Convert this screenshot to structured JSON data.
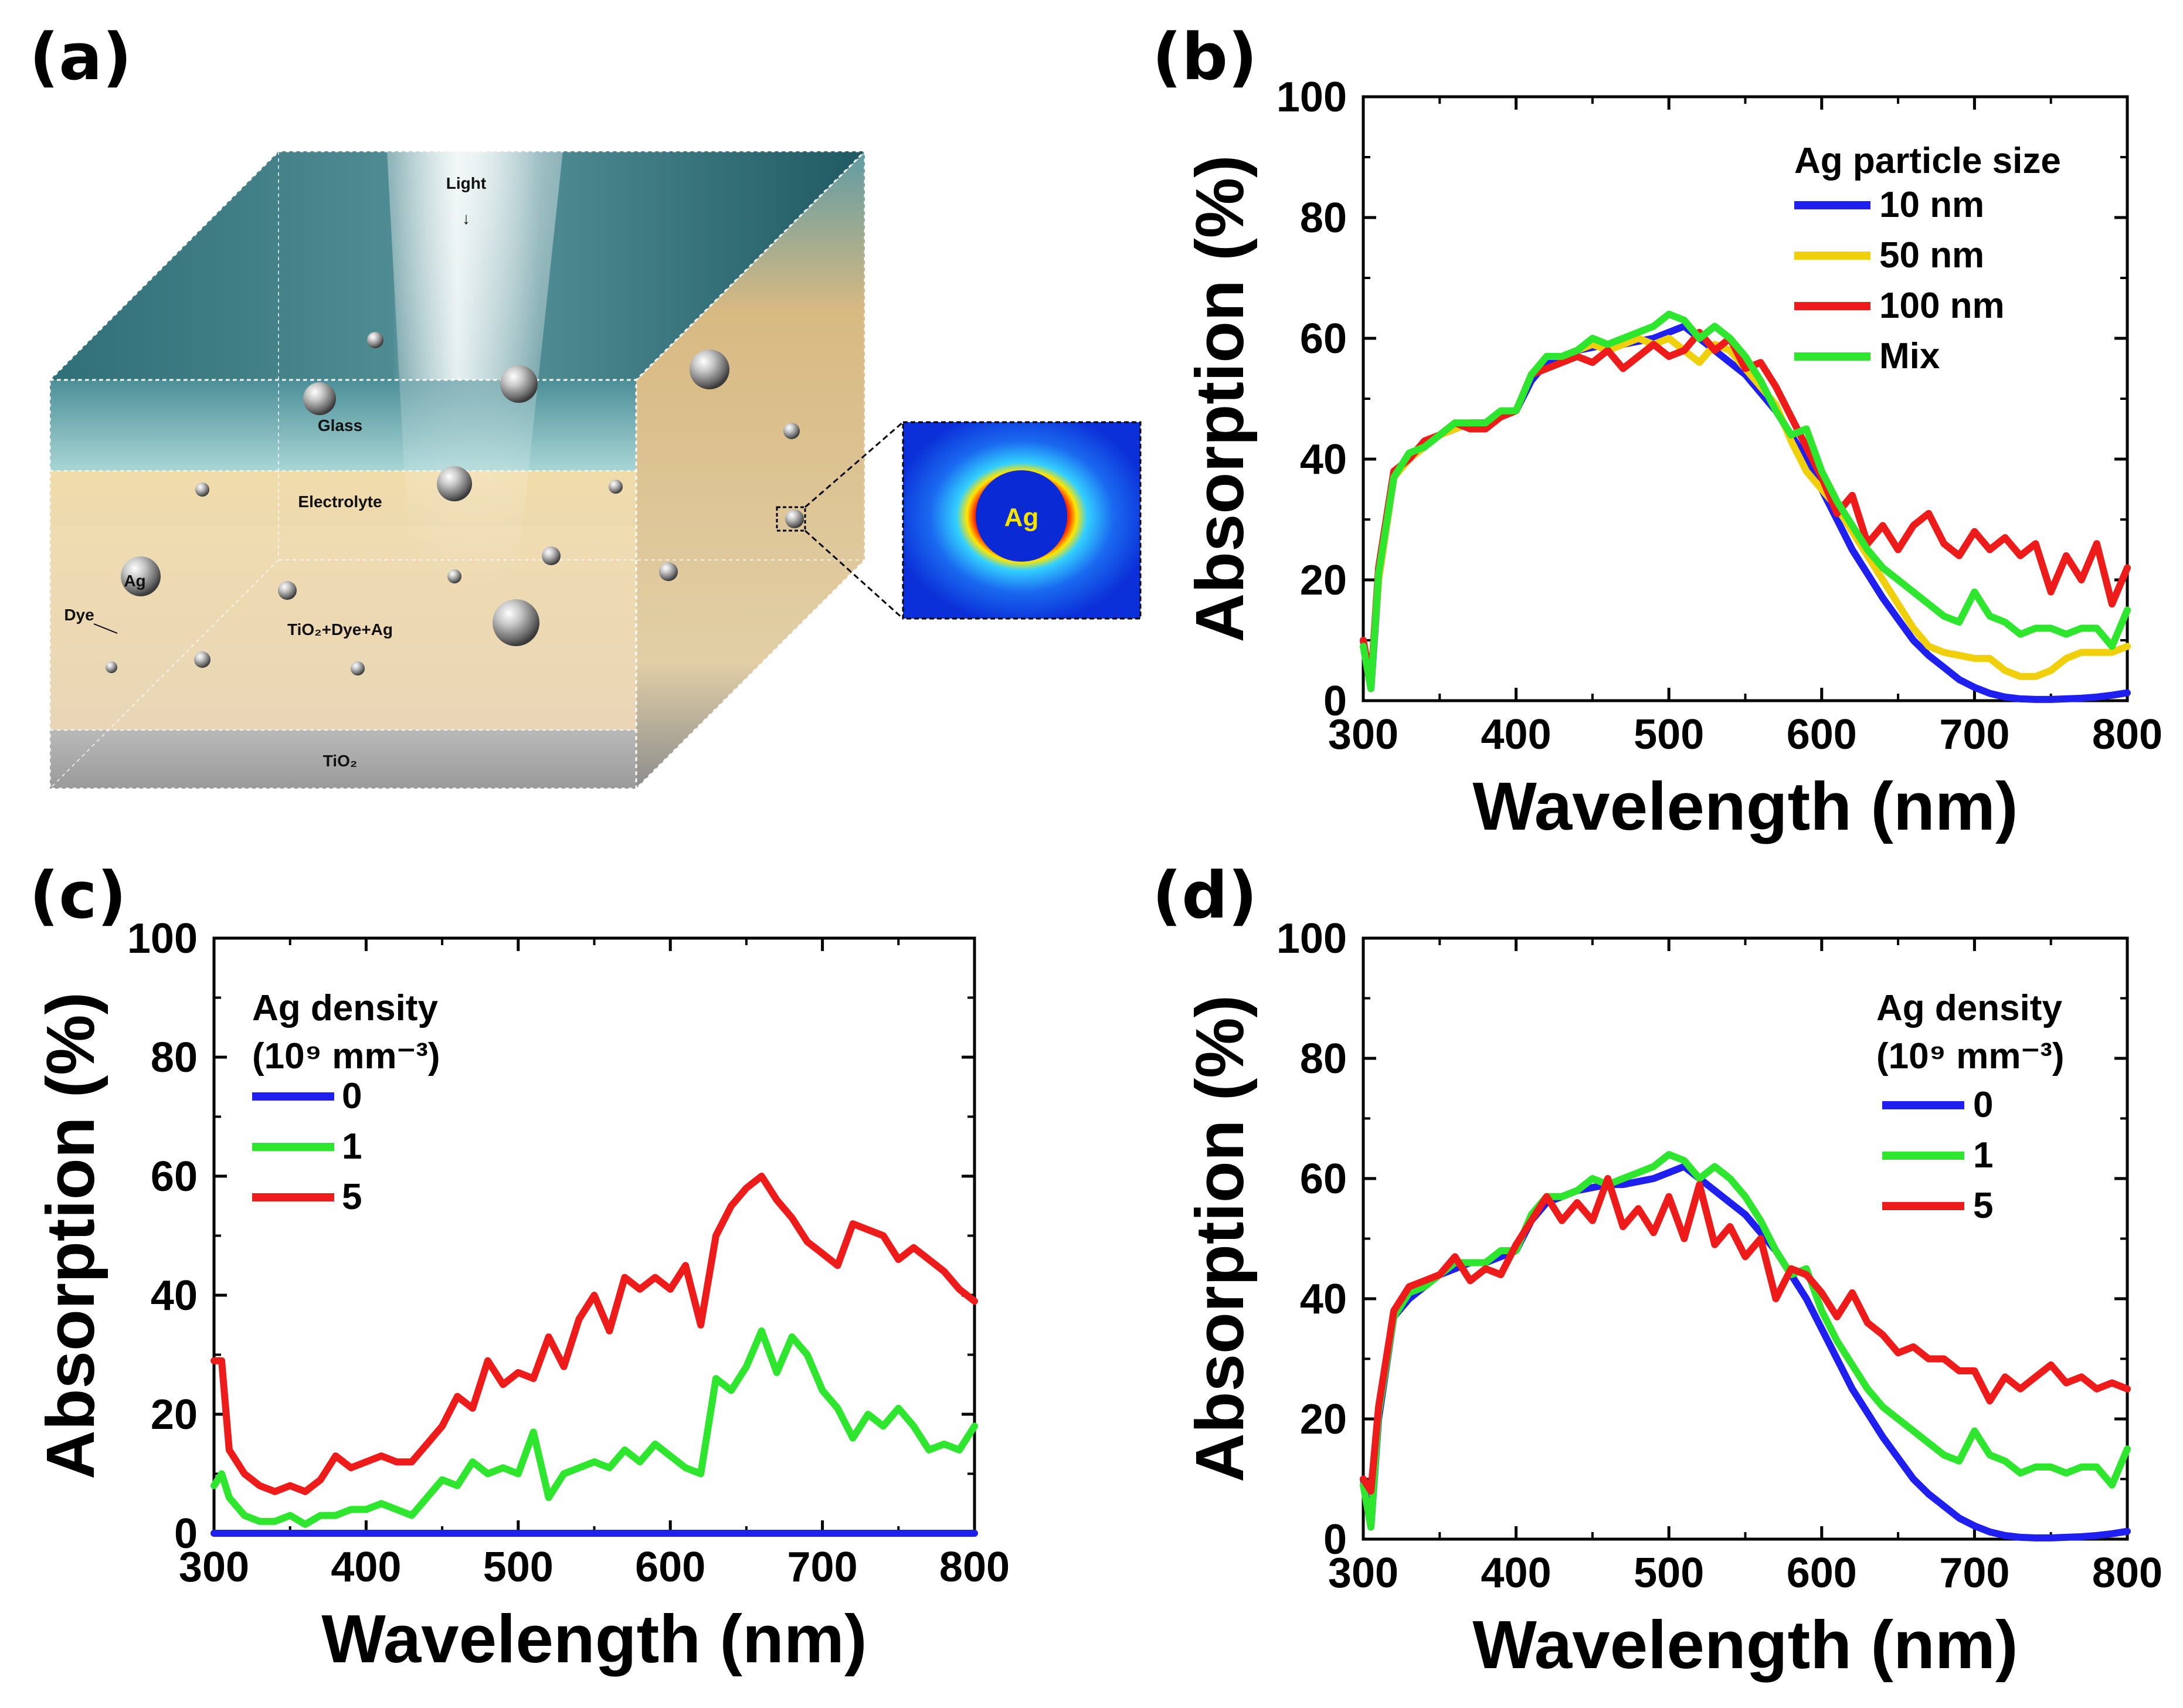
{
  "panels": {
    "a": {
      "label": "(a)",
      "diagram": {
        "light": "Light",
        "glass": "Glass",
        "electrolyte": "Electrolyte",
        "ag": "Ag",
        "dye": "Dye",
        "mixed_layer": "TiO₂+Dye+Ag",
        "tio2": "TiO₂",
        "inset_ag": "Ag"
      }
    },
    "b": {
      "label": "(b)"
    },
    "c": {
      "label": "(c)"
    },
    "d": {
      "label": "(d)"
    }
  },
  "colors": {
    "blue": "#1f1ff0",
    "yellow": "#f0cf0c",
    "red": "#ee1b1b",
    "green": "#2ee62e"
  },
  "chart_data": [
    {
      "id": "b",
      "type": "line",
      "xlabel": "Wavelength (nm)",
      "ylabel": "Absorption (%)",
      "xlim": [
        300,
        800
      ],
      "ylim": [
        0,
        100
      ],
      "xticks": [
        "300",
        "400",
        "500",
        "600",
        "700",
        "800"
      ],
      "yticks": [
        "0",
        "20",
        "40",
        "60",
        "80",
        "100"
      ],
      "legend": {
        "title": "Ag particle size",
        "subtitle": "",
        "position": "top-right"
      },
      "series": [
        {
          "name": "10 nm",
          "color": "#1f1ff0",
          "x": [
            300,
            305,
            310,
            320,
            330,
            340,
            350,
            360,
            370,
            380,
            390,
            400,
            410,
            420,
            430,
            440,
            450,
            460,
            470,
            480,
            490,
            500,
            510,
            520,
            530,
            540,
            550,
            560,
            570,
            580,
            590,
            600,
            610,
            620,
            630,
            640,
            650,
            660,
            670,
            680,
            690,
            700,
            710,
            720,
            730,
            740,
            750,
            760,
            770,
            780,
            790,
            800
          ],
          "y": [
            10,
            2,
            20,
            37,
            40,
            42,
            44,
            45,
            46,
            46,
            47,
            48,
            53,
            56,
            57,
            58,
            58.5,
            59,
            59,
            59.5,
            60,
            61,
            62,
            60,
            58,
            56,
            54,
            51,
            48,
            44,
            40,
            35,
            30,
            25,
            21,
            17,
            13.5,
            10,
            7.5,
            5.5,
            3.5,
            2.2,
            1.2,
            0.6,
            0.3,
            0.2,
            0.2,
            0.3,
            0.4,
            0.6,
            0.9,
            1.3
          ]
        },
        {
          "name": "50 nm",
          "color": "#f0cf0c",
          "x": [
            300,
            305,
            310,
            320,
            330,
            340,
            350,
            360,
            370,
            380,
            390,
            400,
            410,
            420,
            430,
            440,
            450,
            460,
            470,
            480,
            490,
            500,
            510,
            520,
            530,
            540,
            550,
            560,
            570,
            580,
            590,
            600,
            610,
            620,
            630,
            640,
            650,
            660,
            670,
            680,
            690,
            700,
            710,
            720,
            730,
            740,
            750,
            760,
            770,
            780,
            790,
            800
          ],
          "y": [
            9,
            3,
            20,
            37,
            40,
            42,
            44,
            45,
            46,
            45,
            47,
            48,
            54,
            57,
            57,
            58,
            59,
            58,
            59,
            60,
            59,
            60,
            58,
            56,
            59,
            58,
            55,
            52,
            49,
            43,
            38,
            35,
            32,
            28,
            24,
            20,
            16,
            12,
            9,
            8,
            7.5,
            7,
            7,
            5,
            4,
            4,
            5,
            7,
            8,
            8,
            8,
            9
          ]
        },
        {
          "name": "100 nm",
          "color": "#ee1b1b",
          "x": [
            300,
            305,
            310,
            320,
            330,
            340,
            350,
            360,
            370,
            380,
            390,
            400,
            410,
            420,
            430,
            440,
            450,
            460,
            470,
            480,
            490,
            500,
            510,
            520,
            530,
            540,
            550,
            560,
            570,
            580,
            590,
            600,
            610,
            620,
            630,
            640,
            650,
            660,
            670,
            680,
            690,
            700,
            710,
            720,
            730,
            740,
            750,
            760,
            770,
            780,
            790,
            800
          ],
          "y": [
            10,
            3,
            22,
            38,
            40,
            43,
            44,
            46,
            45,
            45,
            47,
            48,
            54,
            55,
            56,
            57,
            56,
            58,
            55,
            57,
            59,
            57,
            58,
            61,
            58,
            60,
            55,
            56,
            52,
            47,
            42,
            37,
            31,
            34,
            26,
            29,
            25,
            29,
            31,
            26,
            24,
            28,
            25,
            27,
            24,
            26,
            18,
            24,
            20,
            26,
            16,
            22
          ]
        },
        {
          "name": "Mix",
          "color": "#2ee62e",
          "x": [
            300,
            305,
            310,
            320,
            330,
            340,
            350,
            360,
            370,
            380,
            390,
            400,
            410,
            420,
            430,
            440,
            450,
            460,
            470,
            480,
            490,
            500,
            510,
            520,
            530,
            540,
            550,
            560,
            570,
            580,
            590,
            600,
            610,
            620,
            630,
            640,
            650,
            660,
            670,
            680,
            690,
            700,
            710,
            720,
            730,
            740,
            750,
            760,
            770,
            780,
            790,
            800
          ],
          "y": [
            9,
            2,
            21,
            37,
            41,
            42,
            44,
            46,
            46,
            46,
            48,
            48,
            54,
            57,
            57,
            58,
            60,
            59,
            60,
            61,
            62,
            64,
            63,
            60,
            62,
            60,
            57,
            53,
            48,
            44,
            45,
            38,
            33,
            29,
            25,
            22,
            20,
            18,
            16,
            14,
            13,
            18,
            14,
            13,
            11,
            12,
            12,
            11,
            12,
            12,
            9,
            15
          ]
        }
      ]
    },
    {
      "id": "c",
      "type": "line",
      "xlabel": "Wavelength (nm)",
      "ylabel": "Absorption (%)",
      "xlim": [
        300,
        800
      ],
      "ylim": [
        0,
        100
      ],
      "xticks": [
        "300",
        "400",
        "500",
        "600",
        "700",
        "800"
      ],
      "yticks": [
        "0",
        "20",
        "40",
        "60",
        "80",
        "100"
      ],
      "legend": {
        "title": "Ag density",
        "subtitle": "(10⁹ mm⁻³)",
        "position": "top-left"
      },
      "series": [
        {
          "name": "0",
          "color": "#1f1ff0",
          "x": [
            300,
            800
          ],
          "y": [
            0,
            0
          ]
        },
        {
          "name": "1",
          "color": "#2ee62e",
          "x": [
            300,
            305,
            310,
            320,
            330,
            340,
            350,
            360,
            370,
            380,
            390,
            400,
            410,
            420,
            430,
            440,
            450,
            460,
            470,
            480,
            490,
            500,
            510,
            520,
            530,
            540,
            550,
            560,
            570,
            580,
            590,
            600,
            610,
            620,
            630,
            640,
            650,
            660,
            670,
            680,
            690,
            700,
            710,
            720,
            730,
            740,
            750,
            760,
            770,
            780,
            790,
            800
          ],
          "y": [
            8,
            10,
            6,
            3,
            2,
            2,
            3,
            1.5,
            3,
            3,
            4,
            4,
            5,
            4,
            3,
            6,
            9,
            8,
            12,
            10,
            11,
            10,
            17,
            6,
            10,
            11,
            12,
            11,
            14,
            12,
            15,
            13,
            11,
            10,
            26,
            24,
            28,
            34,
            27,
            33,
            30,
            24,
            21,
            16,
            20,
            18,
            21,
            18,
            14,
            15,
            14,
            18
          ]
        },
        {
          "name": "5",
          "color": "#ee1b1b",
          "x": [
            300,
            305,
            310,
            320,
            330,
            340,
            350,
            360,
            370,
            380,
            390,
            400,
            410,
            420,
            430,
            440,
            450,
            460,
            470,
            480,
            490,
            500,
            510,
            520,
            530,
            540,
            550,
            560,
            570,
            580,
            590,
            600,
            610,
            620,
            630,
            640,
            650,
            660,
            670,
            680,
            690,
            700,
            710,
            720,
            730,
            740,
            750,
            760,
            770,
            780,
            790,
            800
          ],
          "y": [
            29,
            29,
            14,
            10,
            8,
            7,
            8,
            7,
            9,
            13,
            11,
            12,
            13,
            12,
            12,
            15,
            18,
            23,
            21,
            29,
            25,
            27,
            26,
            33,
            28,
            36,
            40,
            34,
            43,
            41,
            43,
            41,
            45,
            35,
            50,
            55,
            58,
            60,
            56,
            53,
            49,
            47,
            45,
            52,
            51,
            50,
            46,
            48,
            46,
            44,
            41,
            39
          ]
        }
      ]
    },
    {
      "id": "d",
      "type": "line",
      "xlabel": "Wavelength (nm)",
      "ylabel": "Absorption (%)",
      "xlim": [
        300,
        800
      ],
      "ylim": [
        0,
        100
      ],
      "xticks": [
        "300",
        "400",
        "500",
        "600",
        "700",
        "800"
      ],
      "yticks": [
        "0",
        "20",
        "40",
        "60",
        "80",
        "100"
      ],
      "legend": {
        "title": "Ag density",
        "subtitle": "(10⁹ mm⁻³)",
        "position": "top-right"
      },
      "series": [
        {
          "name": "0",
          "color": "#1f1ff0",
          "x": [
            300,
            305,
            310,
            320,
            330,
            340,
            350,
            360,
            370,
            380,
            390,
            400,
            410,
            420,
            430,
            440,
            450,
            460,
            470,
            480,
            490,
            500,
            510,
            520,
            530,
            540,
            550,
            560,
            570,
            580,
            590,
            600,
            610,
            620,
            630,
            640,
            650,
            660,
            670,
            680,
            690,
            700,
            710,
            720,
            730,
            740,
            750,
            760,
            770,
            780,
            790,
            800
          ],
          "y": [
            10,
            2,
            20,
            37,
            40,
            42,
            44,
            45,
            46,
            46,
            47,
            48,
            53,
            56,
            57,
            58,
            58.5,
            59,
            59,
            59.5,
            60,
            61,
            62,
            60,
            58,
            56,
            54,
            51,
            48,
            44,
            40,
            35,
            30,
            25,
            21,
            17,
            13.5,
            10,
            7.5,
            5.5,
            3.5,
            2.2,
            1.2,
            0.6,
            0.3,
            0.2,
            0.2,
            0.3,
            0.4,
            0.6,
            0.9,
            1.3
          ]
        },
        {
          "name": "1",
          "color": "#2ee62e",
          "x": [
            300,
            305,
            310,
            320,
            330,
            340,
            350,
            360,
            370,
            380,
            390,
            400,
            410,
            420,
            430,
            440,
            450,
            460,
            470,
            480,
            490,
            500,
            510,
            520,
            530,
            540,
            550,
            560,
            570,
            580,
            590,
            600,
            610,
            620,
            630,
            640,
            650,
            660,
            670,
            680,
            690,
            700,
            710,
            720,
            730,
            740,
            750,
            760,
            770,
            780,
            790,
            800
          ],
          "y": [
            9,
            2,
            21,
            37,
            41,
            42,
            44,
            46,
            46,
            46,
            48,
            48,
            54,
            57,
            57,
            58,
            60,
            59,
            60,
            61,
            62,
            64,
            63,
            60,
            62,
            60,
            57,
            53,
            48,
            44,
            45,
            38,
            33,
            29,
            25,
            22,
            20,
            18,
            16,
            14,
            13,
            18,
            14,
            13,
            11,
            12,
            12,
            11,
            12,
            12,
            9,
            15
          ]
        },
        {
          "name": "5",
          "color": "#ee1b1b",
          "x": [
            300,
            305,
            310,
            320,
            330,
            340,
            350,
            360,
            370,
            380,
            390,
            400,
            410,
            420,
            430,
            440,
            450,
            460,
            470,
            480,
            490,
            500,
            510,
            520,
            530,
            540,
            550,
            560,
            570,
            580,
            590,
            600,
            610,
            620,
            630,
            640,
            650,
            660,
            670,
            680,
            690,
            700,
            710,
            720,
            730,
            740,
            750,
            760,
            770,
            780,
            790,
            800
          ],
          "y": [
            10,
            8,
            22,
            38,
            42,
            43,
            44,
            47,
            43,
            45,
            44,
            49,
            53,
            57,
            53,
            56,
            53,
            60,
            52,
            55,
            51,
            57,
            50,
            59,
            49,
            52,
            47,
            50,
            40,
            45,
            44,
            41,
            37,
            41,
            36,
            34,
            31,
            32,
            30,
            30,
            28,
            28,
            23,
            27,
            25,
            27,
            29,
            26,
            27,
            25,
            26,
            25
          ]
        }
      ]
    }
  ]
}
